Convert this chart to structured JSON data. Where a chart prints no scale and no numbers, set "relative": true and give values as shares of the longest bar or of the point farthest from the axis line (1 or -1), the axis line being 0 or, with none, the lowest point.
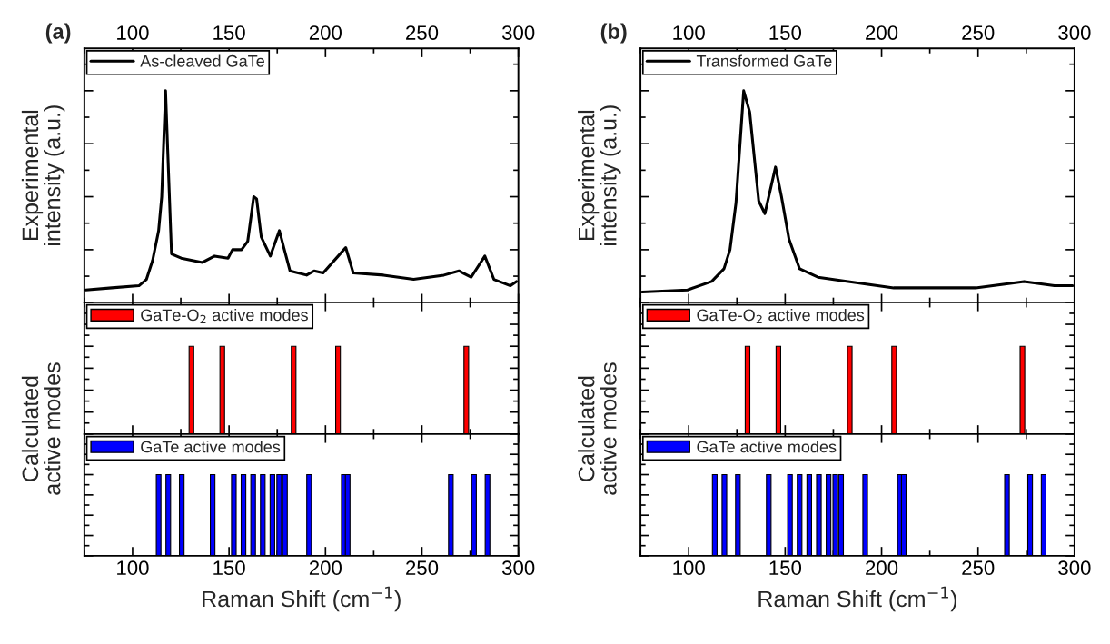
{
  "chart_data": [
    {
      "type": "line",
      "relative": true,
      "annotations": [
        "(a)"
      ],
      "ylabel": "Experimental\nintensity (a.u.)",
      "xlim": [
        75,
        300
      ],
      "xticks": [
        100,
        150,
        200,
        250,
        300
      ],
      "tick_labels": "x",
      "legend": "top left",
      "series": [
        {
          "name": "As-cleaved GaTe",
          "color": "#000000",
          "x": [
            75.7,
            89.2,
            103.3,
            107.2,
            110.4,
            113.5,
            115.1,
            117.1,
            118.2,
            120.2,
            125.2,
            136.2,
            142.5,
            149.5,
            151.8,
            156.5,
            159.7,
            162.8,
            164.3,
            166.7,
            171.4,
            176.1,
            178.4,
            181.6,
            190.2,
            194.1,
            198.8,
            206.6,
            210.5,
            214.4,
            230.1,
            245.7,
            261.4,
            269.2,
            275.5,
            282.6,
            287.3,
            295.9,
            299
          ],
          "values": [
            0.06,
            0.07,
            0.08,
            0.11,
            0.2,
            0.34,
            0.5,
            1.0,
            0.72,
            0.23,
            0.21,
            0.19,
            0.22,
            0.21,
            0.25,
            0.25,
            0.29,
            0.5,
            0.49,
            0.31,
            0.22,
            0.34,
            0.26,
            0.15,
            0.13,
            0.15,
            0.14,
            0.22,
            0.26,
            0.14,
            0.13,
            0.11,
            0.13,
            0.15,
            0.12,
            0.22,
            0.11,
            0.08,
            0.1
          ]
        }
      ]
    },
    {
      "type": "bar",
      "relative": true,
      "ylabel": "Calculated\nactive modes",
      "xlim": [
        75,
        300
      ],
      "tick_labels": false,
      "legend": "top left",
      "series": [
        {
          "name": "GaTe-O$_{2}$ active modes",
          "color": "#ff0000",
          "x": [
            130.5,
            146.5,
            183.5,
            206.5,
            273
          ],
          "values": [
            1,
            1,
            1,
            1,
            1
          ]
        }
      ]
    },
    {
      "type": "bar",
      "relative": true,
      "xlabel": "Raman Shift (cm$^{−1}$)",
      "xlim": [
        75,
        300
      ],
      "xticks": [
        100,
        150,
        200,
        250,
        300
      ],
      "tick_labels": "x",
      "legend": "top left",
      "series": [
        {
          "name": "GaTe active modes",
          "color": "#0000ff",
          "x": [
            113.5,
            118.5,
            125.5,
            141.5,
            152.5,
            157.5,
            162.5,
            167.5,
            172.5,
            176,
            179,
            191.5,
            209.5,
            211.5,
            265,
            277,
            284
          ],
          "values": [
            1,
            1,
            1,
            1,
            1,
            1,
            1,
            1,
            1,
            1,
            1,
            1,
            1,
            1,
            1,
            1,
            1
          ]
        }
      ]
    },
    {
      "type": "line",
      "relative": true,
      "annotations": [
        "(b)"
      ],
      "ylabel": "Experimental\nintensity (a.u.)",
      "xlim": [
        75,
        300
      ],
      "xticks": [
        100,
        150,
        200,
        250,
        300
      ],
      "tick_labels": "x",
      "legend": "top left",
      "series": [
        {
          "name": "Transformed GaTe",
          "color": "#000000",
          "x": [
            75.8,
            99.4,
            111.9,
            118.3,
            121.4,
            124.5,
            128.5,
            131.6,
            136.3,
            139.5,
            145,
            148.1,
            152,
            157.5,
            167,
            182.7,
            206.3,
            229.9,
            248.7,
            273.9,
            289.6,
            299
          ],
          "values": [
            0.05,
            0.06,
            0.1,
            0.16,
            0.25,
            0.47,
            1.0,
            0.9,
            0.48,
            0.42,
            0.64,
            0.5,
            0.3,
            0.16,
            0.12,
            0.1,
            0.07,
            0.07,
            0.07,
            0.1,
            0.08,
            0.08
          ]
        }
      ]
    },
    {
      "type": "bar",
      "relative": true,
      "ylabel": "Calculated\nactive modes",
      "xlim": [
        75,
        300
      ],
      "tick_labels": false,
      "legend": "top left",
      "series": [
        {
          "name": "GaTe-O$_{2}$ active modes",
          "color": "#ff0000",
          "x": [
            130.5,
            146.5,
            183.5,
            206.5,
            273
          ],
          "values": [
            1,
            1,
            1,
            1,
            1
          ]
        }
      ]
    },
    {
      "type": "bar",
      "relative": true,
      "xlabel": "Raman Shift (cm$^{−1}$)",
      "xlim": [
        75,
        300
      ],
      "xticks": [
        100,
        150,
        200,
        250,
        300
      ],
      "tick_labels": "x",
      "legend": "top left",
      "series": [
        {
          "name": "GaTe active modes",
          "color": "#0000ff",
          "x": [
            113.5,
            118.5,
            125.5,
            141.5,
            152.5,
            157.5,
            162.5,
            167.5,
            172.5,
            176,
            179,
            191.5,
            209.5,
            211.5,
            265,
            277,
            284
          ],
          "values": [
            1,
            1,
            1,
            1,
            1,
            1,
            1,
            1,
            1,
            1,
            1,
            1,
            1,
            1,
            1,
            1,
            1
          ]
        }
      ]
    }
  ]
}
